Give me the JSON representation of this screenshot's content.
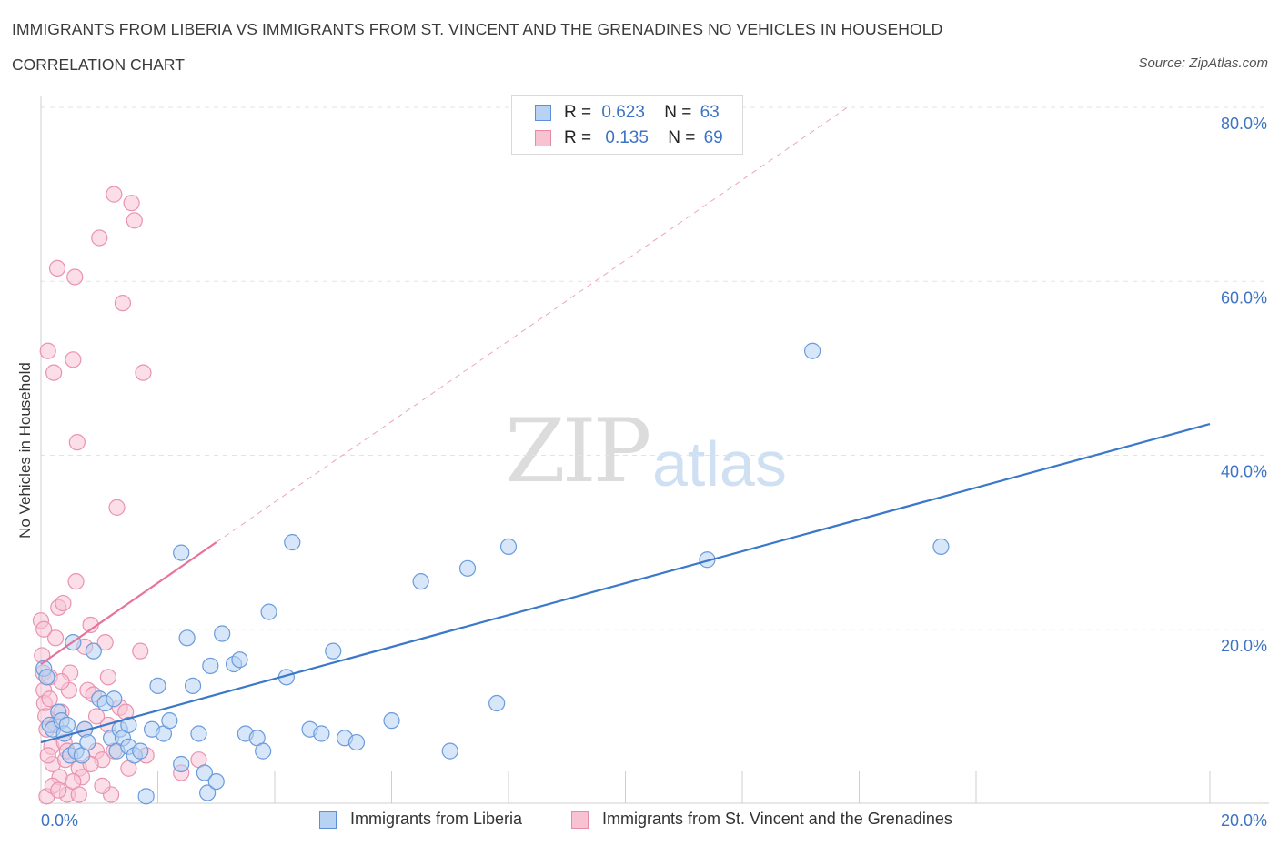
{
  "header": {
    "title": "IMMIGRANTS FROM LIBERIA VS IMMIGRANTS FROM ST. VINCENT AND THE GRENADINES NO VEHICLES IN HOUSEHOLD",
    "subtitle": "CORRELATION CHART",
    "source": "Source: ZipAtlas.com"
  },
  "watermark": {
    "zip": "ZIP",
    "atlas": "atlas"
  },
  "legend": {
    "rows": [
      {
        "r_label": "R =",
        "r_value": "0.623",
        "n_label": "N =",
        "n_value": "63"
      },
      {
        "r_label": "R =",
        "r_value": "0.135",
        "n_label": "N =",
        "n_value": "69"
      }
    ]
  },
  "colors": {
    "blue": "#3a78c9",
    "blue_fill": "#b7d2f2",
    "pink": "#e8739a",
    "pink_fill": "#f7c3d3",
    "grid": "#e3e3e3",
    "tick_label": "#3d72c4"
  },
  "chart_data": {
    "type": "scatter",
    "title": "IMMIGRANTS FROM LIBERIA VS IMMIGRANTS FROM ST. VINCENT AND THE GRENADINES NO VEHICLES IN HOUSEHOLD",
    "xlabel": "",
    "ylabel": "No Vehicles in Household",
    "xlim": [
      0,
      20
    ],
    "ylim": [
      0,
      80
    ],
    "x_tick_labels": [
      "0.0%",
      "20.0%"
    ],
    "y_tick_labels": [
      "20.0%",
      "40.0%",
      "60.0%",
      "80.0%"
    ],
    "y_ticks": [
      20,
      40,
      60,
      80
    ],
    "grid": true,
    "series": [
      {
        "name": "Immigrants from Liberia",
        "color": "#3a78c9",
        "R": 0.623,
        "N": 63,
        "trend": {
          "x": [
            0,
            20
          ],
          "y": [
            7.0,
            43.6
          ],
          "dashed_extension": false
        },
        "points": [
          [
            0.05,
            15.5
          ],
          [
            0.1,
            14.5
          ],
          [
            0.15,
            9.0
          ],
          [
            0.2,
            8.5
          ],
          [
            0.3,
            10.5
          ],
          [
            0.35,
            9.5
          ],
          [
            0.4,
            8.0
          ],
          [
            0.45,
            9.0
          ],
          [
            0.5,
            5.5
          ],
          [
            0.55,
            18.5
          ],
          [
            0.6,
            6.0
          ],
          [
            0.7,
            5.5
          ],
          [
            0.75,
            8.5
          ],
          [
            0.8,
            7.0
          ],
          [
            0.9,
            17.5
          ],
          [
            1.0,
            12.0
          ],
          [
            1.1,
            11.5
          ],
          [
            1.2,
            7.5
          ],
          [
            1.25,
            12.0
          ],
          [
            1.3,
            6.0
          ],
          [
            1.35,
            8.5
          ],
          [
            1.4,
            7.5
          ],
          [
            1.5,
            6.5
          ],
          [
            1.6,
            5.5
          ],
          [
            1.7,
            6.0
          ],
          [
            1.8,
            0.8
          ],
          [
            1.9,
            8.5
          ],
          [
            2.0,
            13.5
          ],
          [
            2.1,
            8.0
          ],
          [
            2.2,
            9.5
          ],
          [
            2.4,
            4.5
          ],
          [
            2.5,
            19.0
          ],
          [
            2.6,
            13.5
          ],
          [
            2.7,
            8.0
          ],
          [
            2.8,
            3.5
          ],
          [
            2.85,
            1.2
          ],
          [
            2.9,
            15.8
          ],
          [
            3.0,
            2.5
          ],
          [
            3.1,
            19.5
          ],
          [
            3.3,
            16.0
          ],
          [
            3.4,
            16.5
          ],
          [
            3.5,
            8.0
          ],
          [
            3.7,
            7.5
          ],
          [
            3.8,
            6.0
          ],
          [
            3.9,
            22.0
          ],
          [
            4.2,
            14.5
          ],
          [
            4.3,
            30.0
          ],
          [
            4.6,
            8.5
          ],
          [
            4.8,
            8.0
          ],
          [
            5.0,
            17.5
          ],
          [
            5.2,
            7.5
          ],
          [
            5.4,
            7.0
          ],
          [
            6.0,
            9.5
          ],
          [
            6.5,
            25.5
          ],
          [
            7.0,
            6.0
          ],
          [
            7.3,
            27.0
          ],
          [
            7.8,
            11.5
          ],
          [
            8.0,
            29.5
          ],
          [
            11.4,
            28.0
          ],
          [
            13.2,
            52.0
          ],
          [
            15.4,
            29.5
          ],
          [
            2.4,
            28.8
          ],
          [
            1.5,
            9.0
          ]
        ]
      },
      {
        "name": "Immigrants from St. Vincent and the Grenadines",
        "color": "#e8739a",
        "R": 0.135,
        "N": 69,
        "trend": {
          "x": [
            0,
            3.0
          ],
          "y": [
            16.0,
            30.0
          ],
          "dashed_extension": true,
          "dashed_to": [
            13.8,
            80.0
          ]
        },
        "points": [
          [
            0.0,
            21.0
          ],
          [
            0.02,
            17.0
          ],
          [
            0.04,
            15.0
          ],
          [
            0.05,
            13.0
          ],
          [
            0.06,
            11.5
          ],
          [
            0.08,
            10.0
          ],
          [
            0.1,
            8.5
          ],
          [
            0.12,
            52.0
          ],
          [
            0.15,
            14.5
          ],
          [
            0.18,
            6.5
          ],
          [
            0.2,
            4.5
          ],
          [
            0.22,
            49.5
          ],
          [
            0.25,
            19.0
          ],
          [
            0.28,
            61.5
          ],
          [
            0.3,
            22.5
          ],
          [
            0.32,
            3.0
          ],
          [
            0.35,
            10.5
          ],
          [
            0.38,
            23.0
          ],
          [
            0.4,
            7.0
          ],
          [
            0.42,
            5.0
          ],
          [
            0.45,
            1.0
          ],
          [
            0.48,
            13.0
          ],
          [
            0.5,
            15.0
          ],
          [
            0.55,
            51.0
          ],
          [
            0.58,
            60.5
          ],
          [
            0.6,
            25.5
          ],
          [
            0.62,
            41.5
          ],
          [
            0.65,
            4.0
          ],
          [
            0.7,
            3.0
          ],
          [
            0.75,
            8.5
          ],
          [
            0.8,
            13.0
          ],
          [
            0.85,
            20.5
          ],
          [
            0.9,
            12.5
          ],
          [
            0.95,
            6.0
          ],
          [
            1.0,
            65.0
          ],
          [
            1.05,
            5.0
          ],
          [
            1.1,
            18.5
          ],
          [
            1.15,
            9.0
          ],
          [
            1.2,
            1.0
          ],
          [
            1.25,
            70.0
          ],
          [
            1.3,
            34.0
          ],
          [
            1.35,
            11.0
          ],
          [
            1.4,
            57.5
          ],
          [
            1.5,
            4.0
          ],
          [
            1.55,
            69.0
          ],
          [
            1.6,
            67.0
          ],
          [
            1.7,
            17.5
          ],
          [
            1.75,
            49.5
          ],
          [
            1.8,
            5.5
          ],
          [
            0.1,
            0.8
          ],
          [
            0.2,
            2.0
          ],
          [
            0.3,
            1.5
          ],
          [
            0.15,
            12.0
          ],
          [
            0.25,
            9.0
          ],
          [
            0.35,
            14.0
          ],
          [
            0.45,
            6.0
          ],
          [
            0.55,
            2.5
          ],
          [
            0.65,
            1.0
          ],
          [
            0.75,
            18.0
          ],
          [
            0.85,
            4.5
          ],
          [
            0.95,
            10.0
          ],
          [
            1.05,
            2.0
          ],
          [
            1.15,
            14.5
          ],
          [
            1.25,
            6.0
          ],
          [
            1.45,
            10.5
          ],
          [
            2.4,
            3.5
          ],
          [
            2.7,
            5.0
          ],
          [
            0.05,
            20.0
          ],
          [
            0.12,
            5.5
          ]
        ]
      }
    ]
  },
  "bottom_legend": {
    "items": [
      {
        "label": "Immigrants from Liberia"
      },
      {
        "label": "Immigrants from St. Vincent and the Grenadines"
      }
    ]
  }
}
